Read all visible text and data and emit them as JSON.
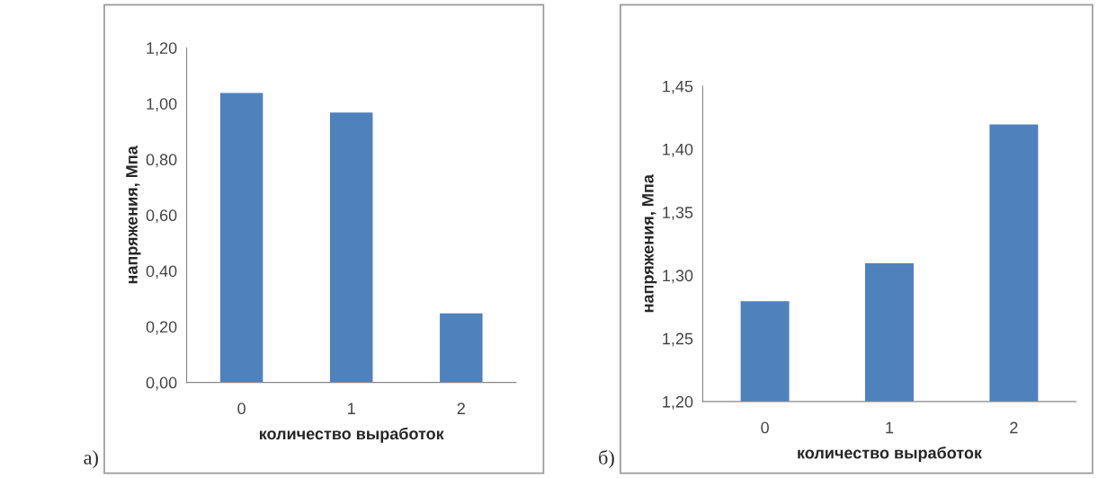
{
  "chart_data": [
    {
      "type": "bar",
      "categories": [
        "0",
        "1",
        "2"
      ],
      "values": [
        1.04,
        0.97,
        0.25
      ],
      "color": "#4f81bd",
      "xlabel": "количество выработок",
      "ylabel": "напряжения, Мпа",
      "ylim": [
        0,
        1.2
      ],
      "yticks": [
        {
          "value": 0,
          "label": "0,00"
        },
        {
          "value": 0.2,
          "label": "0,20"
        },
        {
          "value": 0.4,
          "label": "0,40"
        },
        {
          "value": 0.6,
          "label": "0,60"
        },
        {
          "value": 0.8,
          "label": "0,80"
        },
        {
          "value": 1.0,
          "label": "1,00"
        },
        {
          "value": 1.2,
          "label": "1,20"
        }
      ],
      "annotations": [
        "а)"
      ],
      "grid": false,
      "legend": false
    },
    {
      "type": "bar",
      "categories": [
        "0",
        "1",
        "2"
      ],
      "values": [
        1.28,
        1.31,
        1.42
      ],
      "color": "#4f81bd",
      "xlabel": "количество выработок",
      "ylabel": "напряжения, Мпа",
      "ylim": [
        1.2,
        1.45
      ],
      "yticks": [
        {
          "value": 1.2,
          "label": "1,20"
        },
        {
          "value": 1.25,
          "label": "1,25"
        },
        {
          "value": 1.3,
          "label": "1,30"
        },
        {
          "value": 1.35,
          "label": "1,35"
        },
        {
          "value": 1.4,
          "label": "1,40"
        },
        {
          "value": 1.45,
          "label": "1,45"
        }
      ],
      "annotations": [
        "б)"
      ],
      "grid": false,
      "legend": false
    }
  ]
}
